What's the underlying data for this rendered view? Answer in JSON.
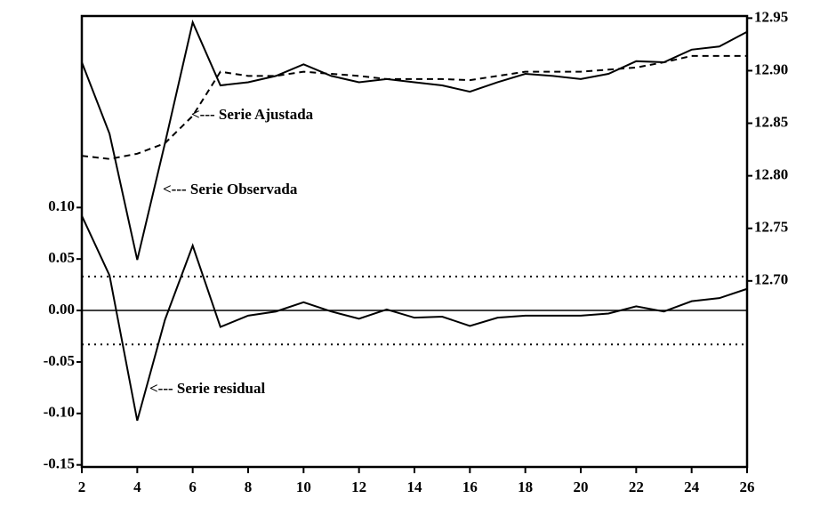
{
  "chart_data": {
    "type": "line",
    "x": [
      2,
      3,
      4,
      5,
      6,
      7,
      8,
      9,
      10,
      11,
      12,
      13,
      14,
      15,
      16,
      17,
      18,
      19,
      20,
      21,
      22,
      23,
      24,
      25,
      26
    ],
    "series": [
      {
        "name": "Serie Observada",
        "axis": "y2",
        "color": "#000000",
        "dash": "solid",
        "values": [
          12.908,
          12.84,
          12.72,
          12.831,
          12.946,
          12.886,
          12.889,
          12.895,
          12.906,
          12.895,
          12.889,
          12.892,
          12.889,
          12.886,
          12.88,
          12.889,
          12.897,
          12.895,
          12.892,
          12.897,
          12.909,
          12.908,
          12.92,
          12.923,
          12.937
        ]
      },
      {
        "name": "Serie Ajustada",
        "axis": "y2",
        "color": "#000000",
        "dash": "dashed",
        "values": [
          12.819,
          12.816,
          12.821,
          12.831,
          12.857,
          12.899,
          12.895,
          12.895,
          12.899,
          12.897,
          12.895,
          12.892,
          12.892,
          12.892,
          12.891,
          12.895,
          12.899,
          12.899,
          12.899,
          12.901,
          12.903,
          12.908,
          12.914,
          12.914,
          12.914
        ]
      },
      {
        "name": "Serie residual",
        "axis": "y",
        "color": "#000000",
        "dash": "solid",
        "values": [
          0.092,
          0.034,
          -0.107,
          -0.009,
          0.063,
          -0.016,
          -0.005,
          -0.001,
          0.008,
          -0.001,
          -0.008,
          0.001,
          -0.007,
          -0.006,
          -0.015,
          -0.007,
          -0.005,
          -0.005,
          -0.005,
          -0.003,
          0.004,
          -0.001,
          0.009,
          0.012,
          0.021
        ]
      }
    ],
    "annotations": [
      "<--- Serie Ajustada",
      "<--- Serie Observada",
      "<--- Serie residual"
    ],
    "xlim": [
      2,
      26
    ],
    "xticks": [
      2,
      4,
      6,
      8,
      10,
      12,
      14,
      16,
      18,
      20,
      22,
      24,
      26
    ],
    "ylim": [
      -0.152,
      0.286
    ],
    "yticks": [
      {
        "value": 0.1,
        "label": "0.10"
      },
      0.05,
      {
        "value": 0,
        "label": "0.00"
      },
      -0.05,
      {
        "value": -0.1,
        "label": "-0.10"
      },
      -0.15
    ],
    "y2lim": [
      12.523,
      12.952
    ],
    "y2ticks": [
      12.95,
      {
        "value": 12.9,
        "label": "12.90"
      },
      12.85,
      {
        "value": 12.8,
        "label": "12.80"
      },
      12.75,
      {
        "value": 12.7,
        "label": "12.70"
      }
    ],
    "reference_lines": [
      {
        "value": 0,
        "style": "solid"
      },
      {
        "value": 0.033,
        "style": "dotted"
      },
      {
        "value": -0.033,
        "style": "dotted"
      }
    ],
    "grid": false
  }
}
